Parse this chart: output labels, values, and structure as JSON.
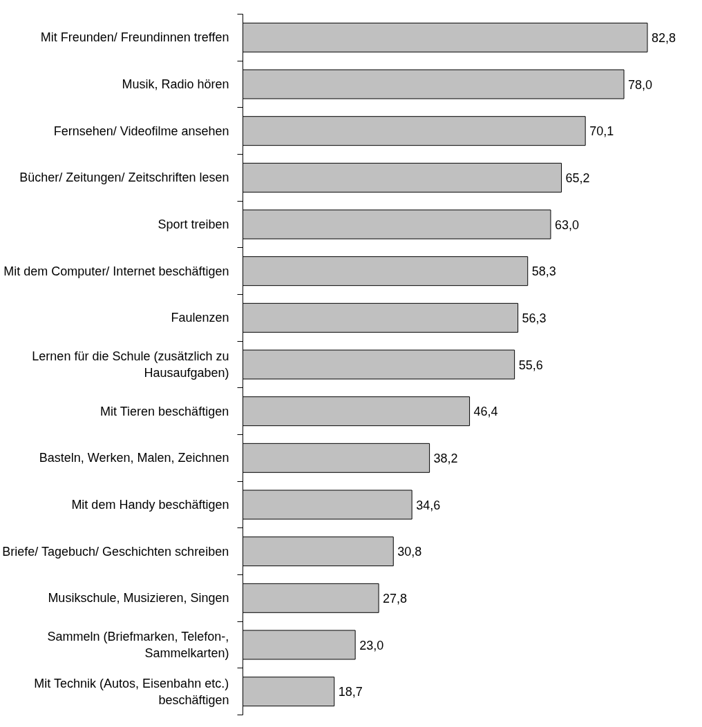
{
  "chart_data": {
    "type": "bar",
    "orientation": "horizontal",
    "categories": [
      "Mit Freunden/ Freundinnen treffen",
      "Musik, Radio hören",
      "Fernsehen/ Videofilme ansehen",
      "Bücher/ Zeitungen/ Zeitschriften lesen",
      "Sport treiben",
      "Mit dem Computer/ Internet beschäftigen",
      "Faulenzen",
      "Lernen für die Schule (zusätzlich zu Hausaufgaben)",
      "Mit Tieren beschäftigen",
      "Basteln, Werken, Malen, Zeichnen",
      "Mit dem Handy beschäftigen",
      "Briefe/ Tagebuch/ Geschichten schreiben",
      "Musikschule, Musizieren, Singen",
      "Sammeln (Briefmarken, Telefon-, Sammelkarten)",
      "Mit Technik (Autos, Eisenbahn etc.) beschäftigen"
    ],
    "values": [
      82.8,
      78.0,
      70.1,
      65.2,
      63.0,
      58.3,
      56.3,
      55.6,
      46.4,
      38.2,
      34.6,
      30.8,
      27.8,
      23.0,
      18.7
    ],
    "value_labels": [
      "82,8",
      "78,0",
      "70,1",
      "65,2",
      "63,0",
      "58,3",
      "56,3",
      "55,6",
      "46,4",
      "38,2",
      "34,6",
      "30,8",
      "27,8",
      "23,0",
      "18,7"
    ],
    "color": "#c0c0c0",
    "grid": false
  }
}
